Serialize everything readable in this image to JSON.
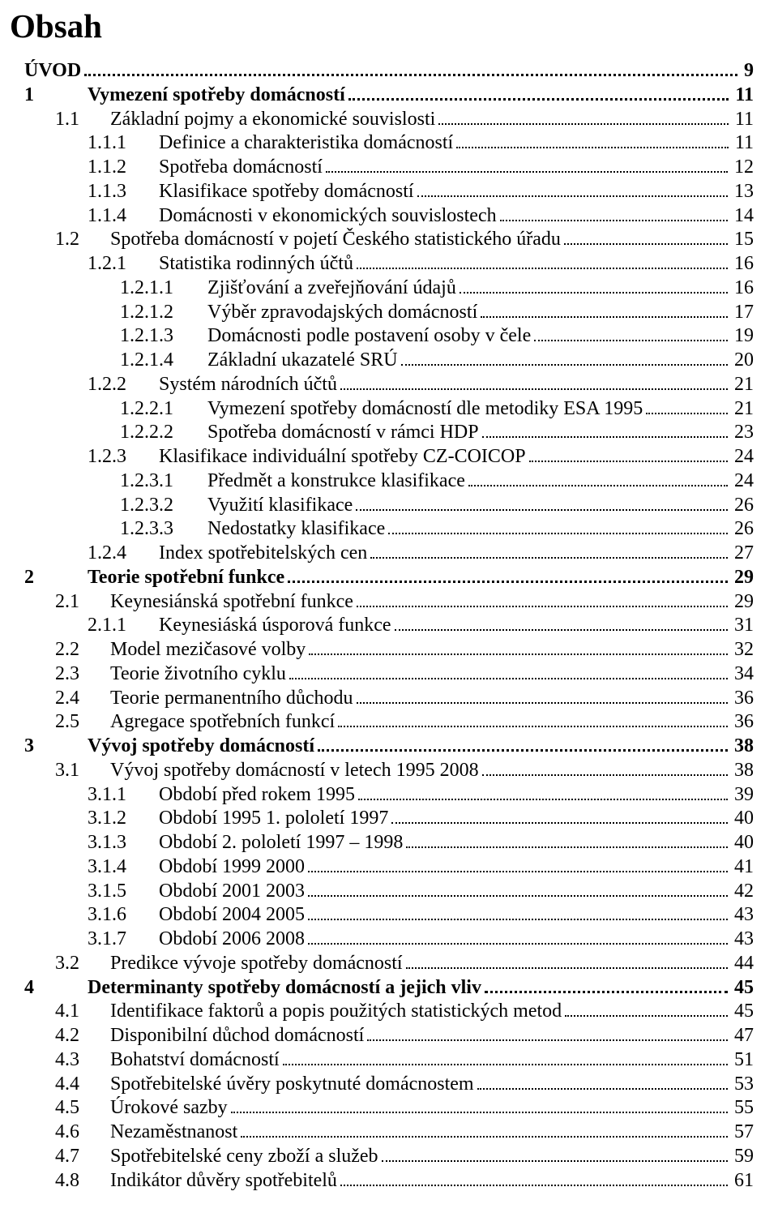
{
  "title": "Obsah",
  "entries": [
    {
      "level": 0,
      "num": "",
      "label": "ÚVOD",
      "page": "9",
      "bold": true
    },
    {
      "level": 1,
      "num": "1",
      "label": "Vymezení spotřeby domácností",
      "page": "11",
      "bold": true
    },
    {
      "level": 2,
      "num": "1.1",
      "label": "Základní pojmy a ekonomické souvislosti",
      "page": "11",
      "bold": false
    },
    {
      "level": 3,
      "num": "1.1.1",
      "label": "Definice a charakteristika domácností",
      "page": "11",
      "bold": false
    },
    {
      "level": 3,
      "num": "1.1.2",
      "label": "Spotřeba domácností",
      "page": "12",
      "bold": false
    },
    {
      "level": 3,
      "num": "1.1.3",
      "label": "Klasifikace spotřeby domácností",
      "page": "13",
      "bold": false
    },
    {
      "level": 3,
      "num": "1.1.4",
      "label": "Domácnosti v ekonomických souvislostech",
      "page": "14",
      "bold": false
    },
    {
      "level": 2,
      "num": "1.2",
      "label": "Spotřeba domácností v pojetí Českého statistického úřadu",
      "page": "15",
      "bold": false
    },
    {
      "level": 3,
      "num": "1.2.1",
      "label": "Statistika rodinných účtů",
      "page": "16",
      "bold": false
    },
    {
      "level": 4,
      "num": "1.2.1.1",
      "label": "Zjišťování a zveřejňování údajů",
      "page": "16",
      "bold": false
    },
    {
      "level": 4,
      "num": "1.2.1.2",
      "label": "Výběr zpravodajských domácností",
      "page": "17",
      "bold": false
    },
    {
      "level": 4,
      "num": "1.2.1.3",
      "label": "Domácnosti podle postavení osoby v čele",
      "page": "19",
      "bold": false
    },
    {
      "level": 4,
      "num": "1.2.1.4",
      "label": "Základní ukazatelé SRÚ",
      "page": "20",
      "bold": false
    },
    {
      "level": 3,
      "num": "1.2.2",
      "label": "Systém národních účtů",
      "page": "21",
      "bold": false
    },
    {
      "level": 4,
      "num": "1.2.2.1",
      "label": "Vymezení spotřeby domácností dle metodiky ESA 1995",
      "page": "21",
      "bold": false
    },
    {
      "level": 4,
      "num": "1.2.2.2",
      "label": "Spotřeba domácností v rámci HDP",
      "page": "23",
      "bold": false
    },
    {
      "level": 3,
      "num": "1.2.3",
      "label": "Klasifikace individuální spotřeby CZ-COICOP",
      "page": "24",
      "bold": false
    },
    {
      "level": 4,
      "num": "1.2.3.1",
      "label": "Předmět a konstrukce klasifikace",
      "page": "24",
      "bold": false
    },
    {
      "level": 4,
      "num": "1.2.3.2",
      "label": "Využití klasifikace",
      "page": "26",
      "bold": false
    },
    {
      "level": 4,
      "num": "1.2.3.3",
      "label": "Nedostatky klasifikace",
      "page": "26",
      "bold": false
    },
    {
      "level": 3,
      "num": "1.2.4",
      "label": "Index spotřebitelských cen",
      "page": "27",
      "bold": false
    },
    {
      "level": 1,
      "num": "2",
      "label": "Teorie spotřební funkce",
      "page": "29",
      "bold": true
    },
    {
      "level": 2,
      "num": "2.1",
      "label": "Keynesiánská spotřební funkce",
      "page": "29",
      "bold": false
    },
    {
      "level": 3,
      "num": "2.1.1",
      "label": "Keynesiáská úsporová funkce",
      "page": "31",
      "bold": false
    },
    {
      "level": 2,
      "num": "2.2",
      "label": "Model mezičasové volby",
      "page": "32",
      "bold": false
    },
    {
      "level": 2,
      "num": "2.3",
      "label": "Teorie životního cyklu",
      "page": "34",
      "bold": false
    },
    {
      "level": 2,
      "num": "2.4",
      "label": "Teorie permanentního důchodu",
      "page": "36",
      "bold": false
    },
    {
      "level": 2,
      "num": "2.5",
      "label": "Agregace spotřebních funkcí",
      "page": "36",
      "bold": false
    },
    {
      "level": 1,
      "num": "3",
      "label": "Vývoj spotřeby domácností",
      "page": "38",
      "bold": true
    },
    {
      "level": 2,
      "num": "3.1",
      "label": "Vývoj spotřeby domácností v letech 1995 2008",
      "page": "38",
      "bold": false
    },
    {
      "level": 3,
      "num": "3.1.1",
      "label": "Období před rokem 1995",
      "page": "39",
      "bold": false
    },
    {
      "level": 3,
      "num": "3.1.2",
      "label": "Období 1995 1. pololetí 1997",
      "page": "40",
      "bold": false
    },
    {
      "level": 3,
      "num": "3.1.3",
      "label": "Období 2. pololetí 1997 – 1998",
      "page": "40",
      "bold": false
    },
    {
      "level": 3,
      "num": "3.1.4",
      "label": "Období 1999 2000",
      "page": "41",
      "bold": false
    },
    {
      "level": 3,
      "num": "3.1.5",
      "label": "Období 2001 2003",
      "page": "42",
      "bold": false
    },
    {
      "level": 3,
      "num": "3.1.6",
      "label": "Období 2004 2005",
      "page": "43",
      "bold": false
    },
    {
      "level": 3,
      "num": "3.1.7",
      "label": "Období 2006 2008",
      "page": "43",
      "bold": false
    },
    {
      "level": 2,
      "num": "3.2",
      "label": "Predikce vývoje spotřeby domácností",
      "page": "44",
      "bold": false
    },
    {
      "level": 1,
      "num": "4",
      "label": "Determinanty spotřeby domácností a jejich vliv",
      "page": "45",
      "bold": true
    },
    {
      "level": 2,
      "num": "4.1",
      "label": "Identifikace faktorů a popis použitých statistických metod",
      "page": "45",
      "bold": false
    },
    {
      "level": 2,
      "num": "4.2",
      "label": "Disponibilní důchod domácností",
      "page": "47",
      "bold": false
    },
    {
      "level": 2,
      "num": "4.3",
      "label": "Bohatství domácností",
      "page": "51",
      "bold": false
    },
    {
      "level": 2,
      "num": "4.4",
      "label": "Spotřebitelské úvěry poskytnuté domácnostem",
      "page": "53",
      "bold": false
    },
    {
      "level": 2,
      "num": "4.5",
      "label": "Úrokové sazby",
      "page": "55",
      "bold": false
    },
    {
      "level": 2,
      "num": "4.6",
      "label": "Nezaměstnanost",
      "page": "57",
      "bold": false
    },
    {
      "level": 2,
      "num": "4.7",
      "label": "Spotřebitelské ceny zboží a služeb",
      "page": "59",
      "bold": false
    },
    {
      "level": 2,
      "num": "4.8",
      "label": "Indikátor důvěry spotřebitelů",
      "page": "61",
      "bold": false
    }
  ]
}
